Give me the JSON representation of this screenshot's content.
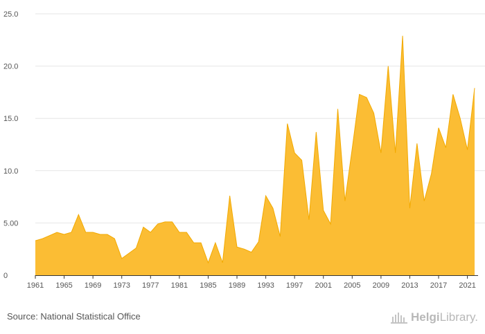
{
  "chart_data": {
    "type": "area",
    "x": [
      1961,
      1962,
      1963,
      1964,
      1965,
      1966,
      1967,
      1968,
      1969,
      1970,
      1971,
      1972,
      1973,
      1974,
      1975,
      1976,
      1977,
      1978,
      1979,
      1980,
      1981,
      1982,
      1983,
      1984,
      1985,
      1986,
      1987,
      1988,
      1989,
      1990,
      1991,
      1992,
      1993,
      1994,
      1995,
      1996,
      1997,
      1998,
      1999,
      2000,
      2001,
      2002,
      2003,
      2004,
      2005,
      2006,
      2007,
      2008,
      2009,
      2010,
      2011,
      2012,
      2013,
      2014,
      2015,
      2016,
      2017,
      2018,
      2019,
      2020,
      2021,
      2022
    ],
    "values": [
      3.3,
      3.5,
      3.8,
      4.1,
      3.9,
      4.1,
      5.8,
      4.1,
      4.1,
      3.9,
      3.9,
      3.5,
      1.6,
      2.1,
      2.6,
      4.6,
      4.1,
      4.9,
      5.1,
      5.1,
      4.1,
      4.1,
      3.1,
      3.1,
      1.2,
      3.1,
      1.2,
      7.6,
      2.7,
      2.5,
      2.2,
      3.2,
      7.6,
      6.4,
      3.7,
      14.5,
      11.7,
      11.0,
      5.3,
      13.7,
      6.2,
      4.9,
      15.9,
      7.1,
      12.1,
      17.3,
      17.0,
      15.5,
      11.7,
      20.0,
      11.7,
      22.9,
      6.4,
      12.6,
      7.1,
      9.7,
      14.1,
      12.2,
      17.3,
      15.0,
      12.0,
      17.9
    ],
    "ylim": [
      0,
      25
    ],
    "yticks": [
      0,
      5,
      10,
      15,
      20,
      25
    ],
    "ytick_labels": [
      "0",
      "5.00",
      "10.0",
      "15.0",
      "20.0",
      "25.0"
    ],
    "xtick_labels": [
      "1961",
      "1965",
      "1969",
      "1973",
      "1977",
      "1981",
      "1985",
      "1989",
      "1993",
      "1997",
      "2001",
      "2005",
      "2009",
      "2013",
      "2017",
      "2021"
    ],
    "grid": true,
    "fill_color": "#fbbd34",
    "line_color": "#f2a900"
  },
  "footer": {
    "source": "Source: National Statistical Office",
    "logo_text_bold": "Helgi",
    "logo_text_rest": "Library."
  }
}
